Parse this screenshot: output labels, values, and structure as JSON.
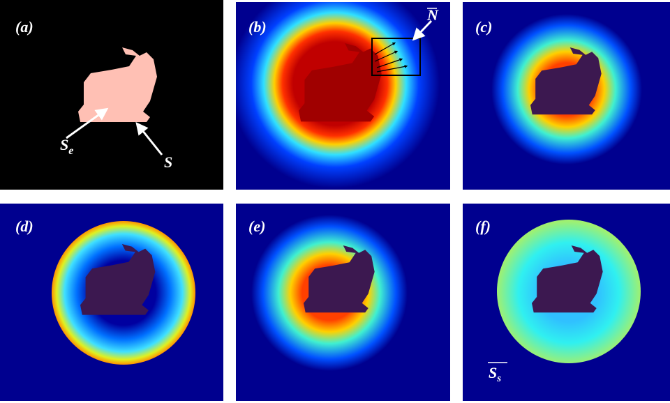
{
  "panels": [
    {
      "label": "(a)"
    },
    {
      "label": "(b)"
    },
    {
      "label": "(c)"
    },
    {
      "label": "(d)"
    },
    {
      "label": "(e)"
    },
    {
      "label": "(f)"
    }
  ],
  "annotations": {
    "se": {
      "main": "S",
      "sub": "e"
    },
    "s": "S",
    "n": "N",
    "ss": {
      "main": "S",
      "sub": "s"
    }
  }
}
